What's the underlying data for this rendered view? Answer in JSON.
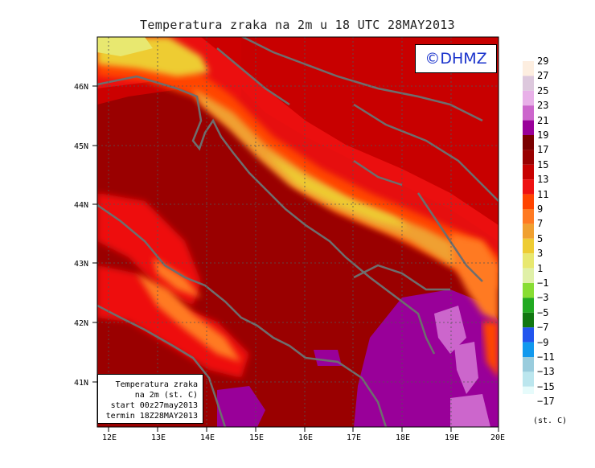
{
  "title": "Temperatura zraka na 2m u 18 UTC 28MAY2013",
  "logo": "©DHMZ",
  "info_box": {
    "line1": "Temperatura zraka",
    "line2": "na 2m (st. C)",
    "line3": "start 00z27may2013",
    "line4": "termin 18Z28MAY2013"
  },
  "axes": {
    "lon_labels": [
      "12E",
      "13E",
      "14E",
      "15E",
      "16E",
      "17E",
      "18E",
      "19E",
      "20E"
    ],
    "lat_labels": [
      "46N",
      "45N",
      "44N",
      "43N",
      "42N",
      "41N"
    ]
  },
  "colorbar": {
    "labels": [
      "29",
      "27",
      "25",
      "23",
      "21",
      "19",
      "17",
      "15",
      "13",
      "11",
      "9",
      "7",
      "5",
      "3",
      "1",
      "−1",
      "−3",
      "−5",
      "−7",
      "−9",
      "−11",
      "−13",
      "−15",
      "−17"
    ],
    "colors": [
      "#fdeee0",
      "#ddc8dd",
      "#e8b0e8",
      "#cc66cc",
      "#990099",
      "#7a0000",
      "#990000",
      "#c80000",
      "#ee1111",
      "#ff4400",
      "#ff7a22",
      "#f0a030",
      "#eecc33",
      "#e8e870",
      "#e0f0a8",
      "#88dd33",
      "#22aa22",
      "#117711",
      "#2255ee",
      "#1199ee",
      "#99ccdd",
      "#bbe6ee",
      "#e6fbfb"
    ],
    "units": "(st. C)"
  }
}
